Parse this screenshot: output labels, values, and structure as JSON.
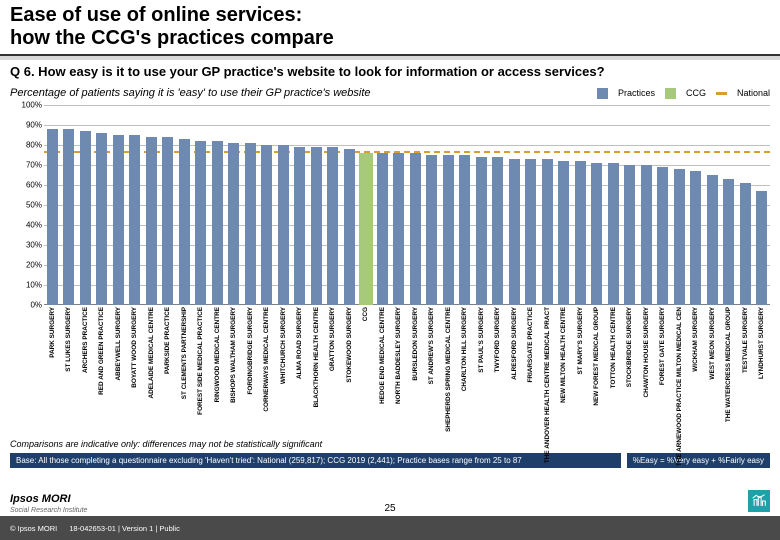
{
  "title_line1": "Ease of use of online services:",
  "title_line2": "how the CCG's practices compare",
  "question": "Q 6. How easy is it to use your GP practice's website to look for information or access services?",
  "subhead": "Percentage of patients saying it is 'easy' to use their GP practice's website",
  "legend": {
    "practices": "Practices",
    "ccg": "CCG",
    "national": "National"
  },
  "footnote": "Comparisons are indicative only: differences may not be statistically significant",
  "base_left": "Base: All those completing a questionnaire excluding 'Haven't tried': National (259,817); CCG 2019 (2,441); Practice bases range from 25 to 87",
  "base_right": "%Easy = %Very easy + %Fairly easy",
  "page_num": "25",
  "footer_copyright": "© Ipsos MORI",
  "footer_ref": "18-042653-01 | Version 1 | Public",
  "logo_main": "Ipsos MORI",
  "logo_sub": "Social Research Institute",
  "chart": {
    "type": "bar",
    "ylim": [
      0,
      100
    ],
    "ytick_step": 10,
    "yticks": [
      "0%",
      "10%",
      "20%",
      "30%",
      "40%",
      "50%",
      "60%",
      "70%",
      "80%",
      "90%",
      "100%"
    ],
    "grid_color": "#bfbfbf",
    "axis_color": "#7f7f7f",
    "bar_color": "#6f8ab0",
    "ccg_bar_color": "#a7c97a",
    "ccg_line_color": "#a7c97a",
    "national_line_color": "#d99e2b",
    "ccg_value": 76,
    "national_value": 76,
    "background_color": "#ffffff",
    "title_fontsize": 20,
    "question_fontsize": 13,
    "subhead_fontsize": 11,
    "axis_fontsize": 8,
    "label_fontsize": 6.4,
    "bars": [
      {
        "label": "PARK SURGERY",
        "v": 88
      },
      {
        "label": "ST LUKES SURGERY",
        "v": 88
      },
      {
        "label": "ARCHERS PRACTICE",
        "v": 87
      },
      {
        "label": "RED AND GREEN PRACTICE",
        "v": 86
      },
      {
        "label": "ABBEYWELL SURGERY",
        "v": 85
      },
      {
        "label": "BOYATT WOOD SURGERY",
        "v": 85
      },
      {
        "label": "ADELAIDE MEDICAL CENTRE",
        "v": 84
      },
      {
        "label": "PARKSIDE PRACTICE",
        "v": 84
      },
      {
        "label": "ST CLEMENTS PARTNERSHIP",
        "v": 83
      },
      {
        "label": "FOREST SIDE MEDICAL PRACTICE",
        "v": 82
      },
      {
        "label": "RINGWOOD MEDICAL CENTRE",
        "v": 82
      },
      {
        "label": "BISHOPS WALTHAM SURGERY",
        "v": 81
      },
      {
        "label": "FORDINGBRIDGE SURGERY",
        "v": 81
      },
      {
        "label": "CORNERWAYS MEDICAL CENTRE",
        "v": 80
      },
      {
        "label": "WHITCHURCH SURGERY",
        "v": 80
      },
      {
        "label": "ALMA ROAD SURGERY",
        "v": 79
      },
      {
        "label": "BLACKTHORN HEALTH CENTRE",
        "v": 79
      },
      {
        "label": "GRATTON SURGERY",
        "v": 79
      },
      {
        "label": "STOKEWOOD SURGERY",
        "v": 78
      },
      {
        "label": "CCG",
        "v": 76,
        "special": true
      },
      {
        "label": "HEDGE END MEDICAL CENTRE",
        "v": 76
      },
      {
        "label": "NORTH BADDESLEY SURGERY",
        "v": 76
      },
      {
        "label": "BURSLEDON SURGERY",
        "v": 76
      },
      {
        "label": "ST ANDREW'S SURGERY",
        "v": 75
      },
      {
        "label": "SHEPHERDS SPRING MEDICAL CENTRE",
        "v": 75
      },
      {
        "label": "CHARLTON HILL SURGERY",
        "v": 75
      },
      {
        "label": "ST PAUL'S SURGERY",
        "v": 74
      },
      {
        "label": "TWYFORD SURGERY",
        "v": 74
      },
      {
        "label": "ALRESFORD SURGERY",
        "v": 73
      },
      {
        "label": "FRIARSGATE PRACTICE",
        "v": 73
      },
      {
        "label": "THE ANDOVER HEALTH CENTRE MEDICAL PRACT",
        "v": 73
      },
      {
        "label": "NEW MILTON HEALTH CENTRE",
        "v": 72
      },
      {
        "label": "ST MARY'S SURGERY",
        "v": 72
      },
      {
        "label": "NEW FOREST MEDICAL GROUP",
        "v": 71
      },
      {
        "label": "TOTTON HEALTH CENTRE",
        "v": 71
      },
      {
        "label": "STOCKBRIDGE SURGERY",
        "v": 70
      },
      {
        "label": "CHAWTON HOUSE SURGERY",
        "v": 70
      },
      {
        "label": "FOREST GATE SURGERY",
        "v": 69
      },
      {
        "label": "THE ARNEWOOD PRACTICE MILTON MEDICAL CEN",
        "v": 68
      },
      {
        "label": "WICKHAM SURGERY",
        "v": 67
      },
      {
        "label": "WEST MEON SURGERY",
        "v": 65
      },
      {
        "label": "THE WATERCRESS MEDICAL GROUP",
        "v": 63
      },
      {
        "label": "TESTVALE SURGERY",
        "v": 61
      },
      {
        "label": "LYNDHURST SURGERY",
        "v": 57
      }
    ]
  },
  "colors": {
    "footer_bg": "#4a4a4a",
    "base_bg": "#1f3f6b",
    "logo_box": "#20a0a8"
  },
  "fontsize": {
    "footnote": 9,
    "base": 8,
    "footer": 7.5
  }
}
